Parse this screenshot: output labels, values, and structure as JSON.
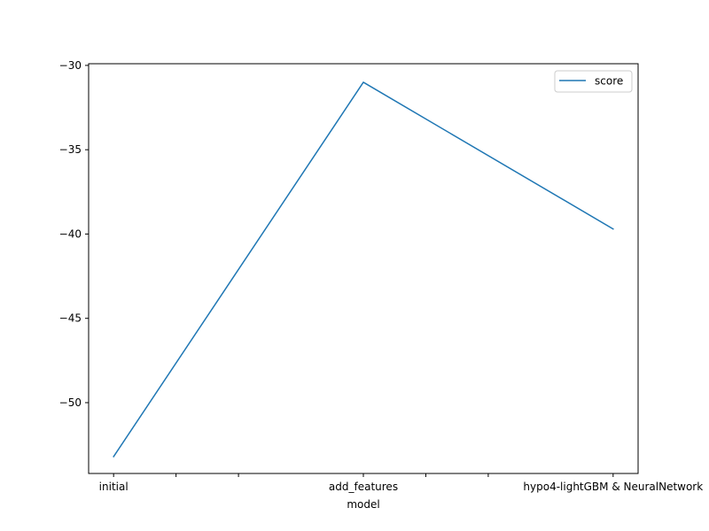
{
  "chart_data": {
    "type": "line",
    "x": [
      "initial",
      "add_features",
      "hypo4-lightGBM & NeuralNetwork"
    ],
    "x_ticks": [
      {
        "position": 0,
        "label": "initial"
      },
      {
        "position": 0.5,
        "label": ""
      },
      {
        "position": 1.0,
        "label": ""
      },
      {
        "position": 2.0,
        "label": "add_features"
      },
      {
        "position": 2.5,
        "label": ""
      },
      {
        "position": 3.0,
        "label": ""
      },
      {
        "position": 4.0,
        "label": "hypo4-lightGBM & NeuralNetwork"
      }
    ],
    "series": [
      {
        "name": "score",
        "x": [
          0,
          2,
          4
        ],
        "values": [
          -53.2,
          -31.0,
          -39.7
        ],
        "color": "#1f77b4"
      }
    ],
    "title": "",
    "xlabel": "model",
    "ylabel": "",
    "xlim": [
      -0.2,
      4.2
    ],
    "ylim": [
      -54.2,
      -29.9
    ],
    "yticks": [
      -30,
      -35,
      -40,
      -45,
      -50
    ],
    "ytick_labels": [
      "−30",
      "−35",
      "−40",
      "−45",
      "−50"
    ],
    "grid": false,
    "legend_position": "upper right"
  }
}
